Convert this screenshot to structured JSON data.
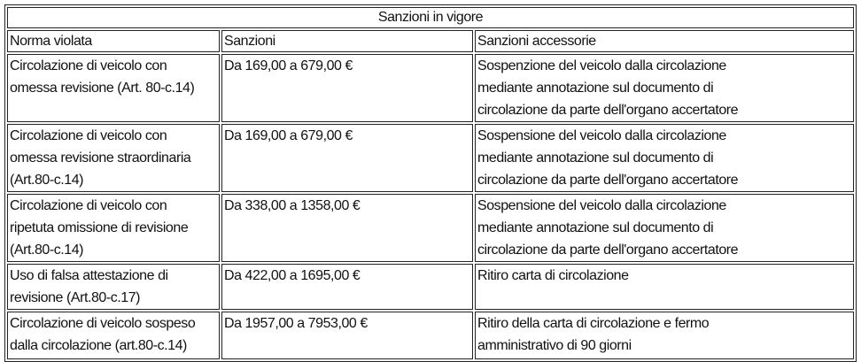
{
  "table": {
    "title": "Sanzioni in vigore",
    "headers": [
      "Norma violata",
      "Sanzioni",
      "Sanzioni accessorie"
    ],
    "rows": [
      {
        "norma": "Circolazione di veicolo con\nomessa revisione (Art. 80-c.14)",
        "sanzioni": "Da 169,00 a 679,00 €",
        "accessorie": "Sospenzione del veicolo dalla circolazione\nmediante annotazione sul documento di\ncircolazione da parte dell'organo accertatore"
      },
      {
        "norma": "Circolazione di veicolo con\nomessa revisione straordinaria\n(Art.80-c.14)",
        "sanzioni": "Da 169,00 a 679,00 €",
        "accessorie": "Sospensione del veicolo dalla circolazione\nmediante annotazione sul documento di\ncircolazione da parte dell'organo accertatore"
      },
      {
        "norma": "Circolazione di veicolo con\nripetuta omissione di revisione\n(Art.80-c.14)",
        "sanzioni": "Da 338,00 a 1358,00 €",
        "accessorie": "Sospensione del veicolo dalla circolazione\nmediante annotazione sul documento di\ncircolazione da parte dell'organo accertatore"
      },
      {
        "norma": "Uso di falsa attestazione di\nrevisione (Art.80-c.17)",
        "sanzioni": "Da 422,00 a 1695,00 €",
        "accessorie": "Ritiro carta di circolazione"
      },
      {
        "norma": "Circolazione di veicolo sospeso\ndalla circolazione (art.80-c.14)",
        "sanzioni": "Da 1957,00 a 7953,00 €",
        "accessorie": "Ritiro della carta di circolazione e fermo\namministrativo di 90 giorni"
      }
    ]
  }
}
